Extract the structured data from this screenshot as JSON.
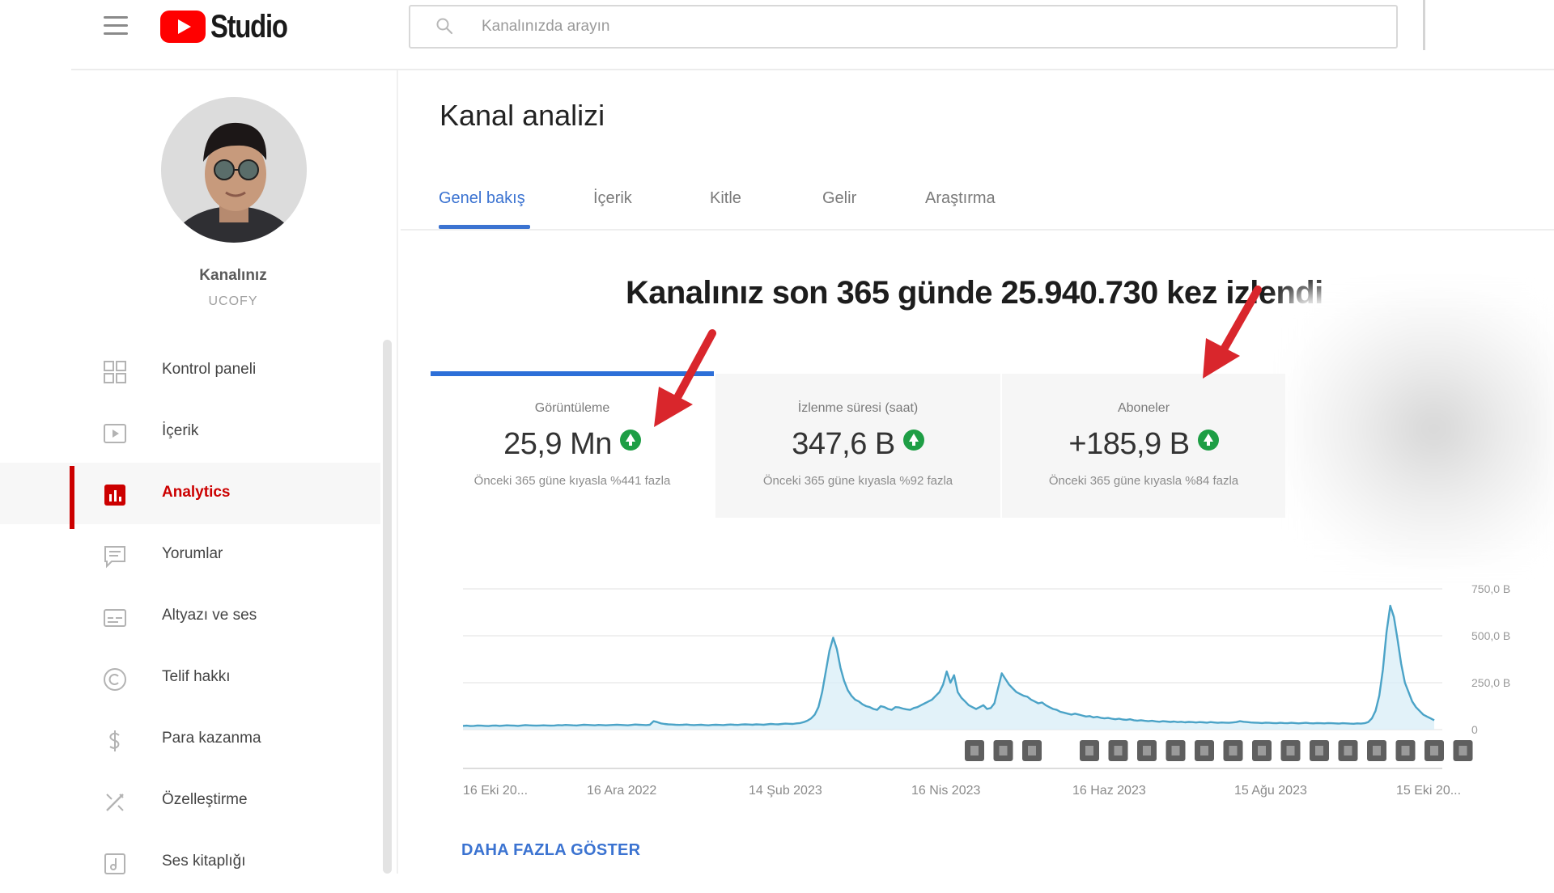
{
  "header": {
    "brand": "Studio",
    "search_placeholder": "Kanalınızda arayın",
    "menu_icon": "hamburger-menu-icon",
    "search_icon": "search-icon"
  },
  "channel": {
    "title": "Kanalınız",
    "subtitle": "UCOFY"
  },
  "sidebar": {
    "items": [
      {
        "label": "Kontrol paneli",
        "icon": "dashboard-icon",
        "active": false
      },
      {
        "label": "İçerik",
        "icon": "content-icon",
        "active": false
      },
      {
        "label": "Analytics",
        "icon": "analytics-icon",
        "active": true
      },
      {
        "label": "Yorumlar",
        "icon": "comments-icon",
        "active": false
      },
      {
        "label": "Altyazı ve ses",
        "icon": "subtitles-icon",
        "active": false
      },
      {
        "label": "Telif hakkı",
        "icon": "copyright-icon",
        "active": false
      },
      {
        "label": "Para kazanma",
        "icon": "dollar-icon",
        "active": false
      },
      {
        "label": "Özelleştirme",
        "icon": "customization-icon",
        "active": false
      },
      {
        "label": "Ses kitaplığı",
        "icon": "audio-library-icon",
        "active": false
      }
    ]
  },
  "main": {
    "title": "Kanal analizi",
    "tabs": [
      {
        "label": "Genel bakış",
        "active": true
      },
      {
        "label": "İçerik",
        "active": false
      },
      {
        "label": "Kitle",
        "active": false
      },
      {
        "label": "Gelir",
        "active": false
      },
      {
        "label": "Araştırma",
        "active": false
      }
    ],
    "headline": "Kanalınız son 365 günde 25.940.730 kez izlendi",
    "cards": [
      {
        "label": "Görüntüleme",
        "value": "25,9 Mn",
        "sub": "Önceki 365 güne kıyasla %441 fazla",
        "active": true
      },
      {
        "label": "İzlenme süresi (saat)",
        "value": "347,6 B",
        "sub": "Önceki 365 güne kıyasla %92 fazla",
        "active": false
      },
      {
        "label": "Aboneler",
        "value": "+185,9 B",
        "sub": "Önceki 365 güne kıyasla %84 fazla",
        "active": false
      }
    ],
    "show_more": "DAHA FAZLA GÖSTER"
  },
  "colors": {
    "accent": "#3b73d1",
    "brand_red": "#ff0000",
    "active_red": "#cc0000",
    "up_green": "#1e9e45",
    "line": "#4ba3c7",
    "annotation_arrow": "#d9262c"
  },
  "chart_data": {
    "type": "area",
    "x_labels": [
      "16 Eki 20...",
      "16 Ara 2022",
      "14 Şub 2023",
      "16 Nis 2023",
      "16 Haz 2023",
      "15 Ağu 2023",
      "15 Eki 20..."
    ],
    "y_ticks": [
      "0",
      "250,0 B",
      "500,0 B",
      "750,0 B"
    ],
    "ylim": [
      0,
      750000
    ],
    "grid": true,
    "values": [
      20000,
      21000,
      19000,
      20000,
      22000,
      21000,
      20000,
      19000,
      21000,
      22000,
      20000,
      21000,
      23000,
      22000,
      21000,
      20000,
      22000,
      24000,
      23000,
      22000,
      21000,
      22000,
      23000,
      22000,
      21000,
      22000,
      24000,
      23000,
      25000,
      24000,
      23000,
      22000,
      24000,
      26000,
      25000,
      24000,
      23000,
      25000,
      24000,
      23000,
      24000,
      25000,
      26000,
      25000,
      24000,
      23000,
      25000,
      27000,
      26000,
      25000,
      24000,
      26000,
      45000,
      40000,
      33000,
      30000,
      28000,
      27000,
      26000,
      25000,
      26000,
      27000,
      25000,
      24000,
      25000,
      26000,
      24000,
      23000,
      25000,
      26000,
      25000,
      24000,
      26000,
      27000,
      26000,
      25000,
      27000,
      28000,
      27000,
      26000,
      28000,
      27000,
      26000,
      28000,
      30000,
      29000,
      28000,
      30000,
      32000,
      31000,
      30000,
      33000,
      35000,
      40000,
      48000,
      60000,
      80000,
      120000,
      200000,
      310000,
      420000,
      490000,
      430000,
      330000,
      260000,
      210000,
      180000,
      160000,
      150000,
      135000,
      125000,
      120000,
      110000,
      105000,
      125000,
      120000,
      110000,
      105000,
      120000,
      118000,
      112000,
      108000,
      105000,
      115000,
      120000,
      130000,
      140000,
      150000,
      160000,
      180000,
      200000,
      240000,
      310000,
      250000,
      290000,
      200000,
      170000,
      150000,
      130000,
      120000,
      110000,
      120000,
      130000,
      110000,
      115000,
      140000,
      220000,
      300000,
      270000,
      240000,
      220000,
      200000,
      190000,
      180000,
      175000,
      160000,
      150000,
      140000,
      145000,
      130000,
      120000,
      110000,
      105000,
      95000,
      90000,
      85000,
      80000,
      85000,
      80000,
      75000,
      70000,
      72000,
      65000,
      68000,
      63000,
      60000,
      62000,
      58000,
      55000,
      58000,
      54000,
      52000,
      55000,
      50000,
      48000,
      50000,
      47000,
      45000,
      47000,
      44000,
      42000,
      45000,
      43000,
      41000,
      43000,
      40000,
      42000,
      39000,
      41000,
      40000,
      38000,
      40000,
      39000,
      37000,
      40000,
      38000,
      36000,
      38000,
      37000,
      36000,
      38000,
      40000,
      45000,
      42000,
      40000,
      38000,
      37000,
      36000,
      35000,
      37000,
      36000,
      35000,
      34000,
      36000,
      35000,
      34000,
      36000,
      35000,
      33000,
      35000,
      36000,
      34000,
      33000,
      35000,
      34000,
      33000,
      35000,
      34000,
      33000,
      32000,
      34000,
      33000,
      32000,
      31000,
      33000,
      32000,
      34000,
      40000,
      60000,
      100000,
      180000,
      320000,
      520000,
      660000,
      600000,
      480000,
      350000,
      250000,
      200000,
      150000,
      120000,
      100000,
      80000,
      70000,
      60000,
      50000
    ],
    "markers": 18
  }
}
